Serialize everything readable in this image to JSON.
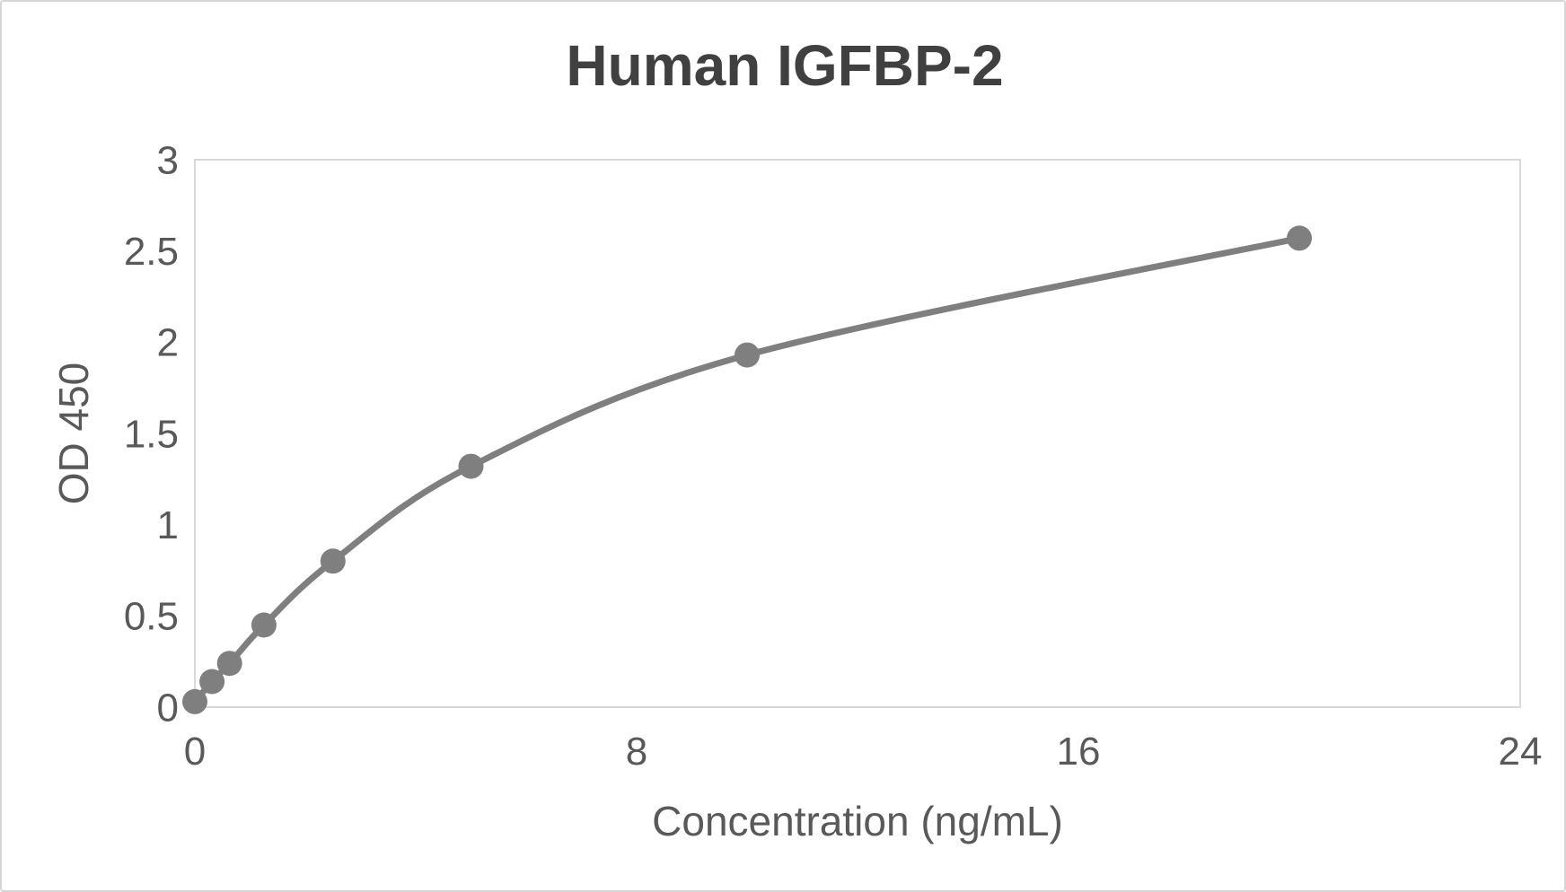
{
  "chart_data": {
    "type": "line",
    "title": "Human IGFBP-2",
    "xlabel": "Concentration (ng/mL)",
    "ylabel": "OD 450",
    "xlim": [
      0,
      24
    ],
    "ylim": [
      0,
      3
    ],
    "x_ticks": [
      0,
      8,
      16,
      24
    ],
    "y_ticks": [
      0,
      0.5,
      1,
      1.5,
      2,
      2.5,
      3
    ],
    "grid": false,
    "legend": false,
    "marker": "circle",
    "points": [
      {
        "x": 0,
        "y": 0.03
      },
      {
        "x": 0.31,
        "y": 0.14
      },
      {
        "x": 0.63,
        "y": 0.24
      },
      {
        "x": 1.25,
        "y": 0.45
      },
      {
        "x": 2.5,
        "y": 0.8
      },
      {
        "x": 5,
        "y": 1.32
      },
      {
        "x": 10,
        "y": 1.93
      },
      {
        "x": 20,
        "y": 2.57
      }
    ],
    "colors": {
      "series": "#7f7f7f",
      "axis_line": "#d9d9d9",
      "tick_label": "#595959",
      "title": "#404040"
    }
  }
}
